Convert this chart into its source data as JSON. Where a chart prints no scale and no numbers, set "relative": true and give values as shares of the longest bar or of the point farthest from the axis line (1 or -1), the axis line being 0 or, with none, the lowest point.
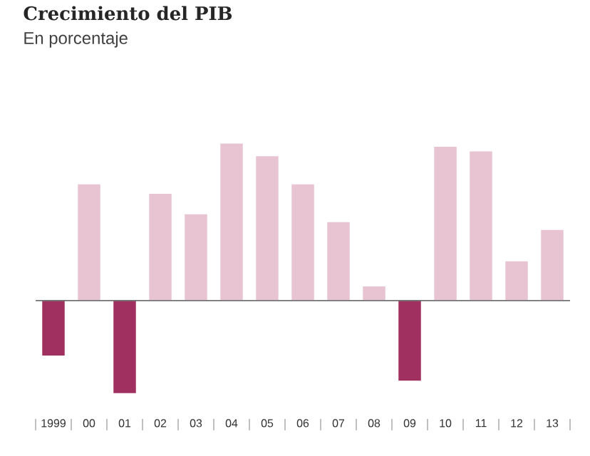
{
  "chart_data": {
    "type": "bar",
    "title": "Crecimiento del PIB",
    "subtitle": "En porcentaje",
    "categories": [
      "1999",
      "00",
      "01",
      "02",
      "03",
      "04",
      "05",
      "06",
      "07",
      "08",
      "09",
      "10",
      "11",
      "12",
      "13"
    ],
    "values": [
      -0.35,
      0.74,
      -0.59,
      0.68,
      0.55,
      1,
      0.92,
      0.74,
      0.5,
      0.09,
      -0.51,
      0.98,
      0.95,
      0.25,
      0.45
    ],
    "colors": [
      "#a0305f",
      "#e8c3d2",
      "#a0305f",
      "#e8c3d2",
      "#e8c3d2",
      "#e8c3d2",
      "#e8c3d2",
      "#e8c3d2",
      "#e8c3d2",
      "#e8c3d2",
      "#a0305f",
      "#e8c3d2",
      "#e8c3d2",
      "#e8c3d2",
      "#e8c3d2"
    ],
    "relative": true
  }
}
